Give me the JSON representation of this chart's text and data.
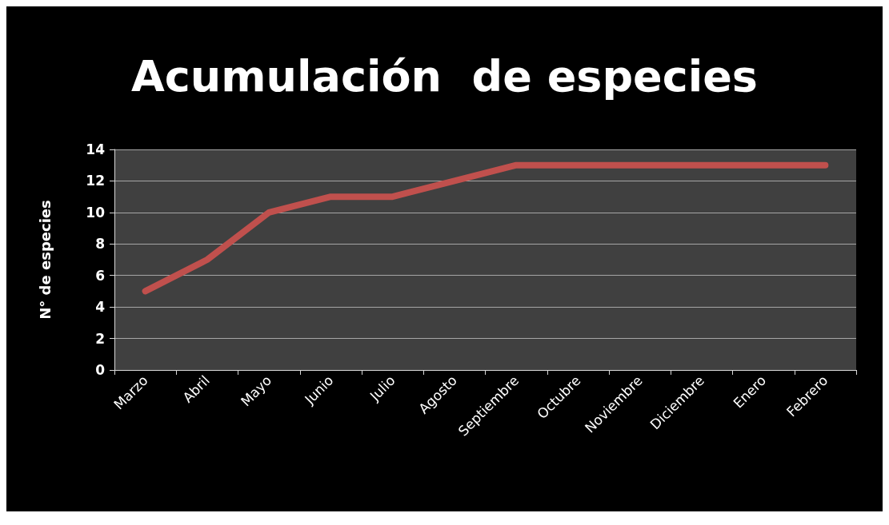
{
  "chart_data": {
    "type": "line",
    "title": "Acumulación  de especies",
    "ylabel": "N° de especies",
    "categories": [
      "Marzo",
      "Abril",
      "Mayo",
      "Junio",
      "Julio",
      "Agosto",
      "Septiembre",
      "Octubre",
      "Noviembre",
      "Diciembre",
      "Enero",
      "Febrero"
    ],
    "series": [
      {
        "color": "#c0504d",
        "values": [
          5,
          7,
          10,
          11,
          11,
          12,
          13,
          13,
          13,
          13,
          13,
          13
        ]
      }
    ],
    "ylim": [
      0,
      14
    ],
    "yticks": [
      0,
      2,
      4,
      6,
      8,
      10,
      12,
      14
    ],
    "grid": "y",
    "marker": "none",
    "line_style": "solid"
  }
}
